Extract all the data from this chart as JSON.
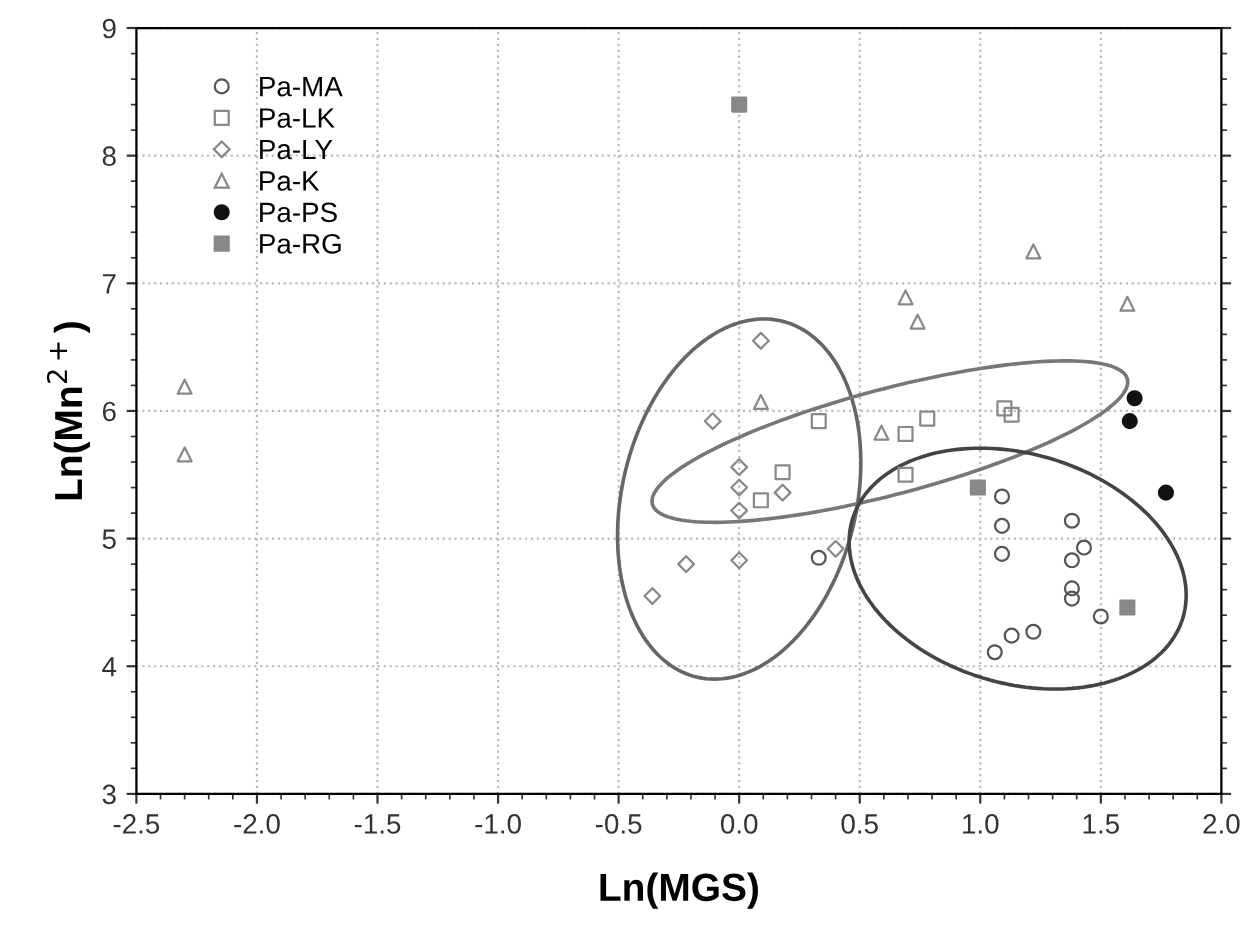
{
  "chart_data": {
    "type": "scatter",
    "xlabel": "Ln(MGS)",
    "ylabel": "Ln(Mn$^{2+}$)",
    "xlim": [
      -2.5,
      2.0
    ],
    "ylim": [
      3,
      9
    ],
    "xticks": [
      {
        "value": -2.5,
        "label": "-2.5"
      },
      {
        "value": -2,
        "label": "-2.0"
      },
      {
        "value": -1.5,
        "label": "-1.5"
      },
      {
        "value": -1,
        "label": "-1.0"
      },
      {
        "value": -0.5,
        "label": "-0.5"
      },
      {
        "value": 0,
        "label": "0.0"
      },
      {
        "value": 0.5,
        "label": "0.5"
      },
      {
        "value": 1,
        "label": "1.0"
      },
      {
        "value": 1.5,
        "label": "1.5"
      },
      {
        "value": 2,
        "label": "2.0"
      }
    ],
    "yticks": [
      3,
      4,
      5,
      6,
      7,
      8,
      9
    ],
    "grid": true,
    "legend": "top left",
    "series": [
      {
        "name": "Pa-MA",
        "marker": "circle",
        "color": "#555555",
        "x": [
          0.33,
          1.09,
          1.09,
          1.09,
          1.38,
          1.43,
          1.38,
          1.38,
          1.38,
          1.5,
          1.06,
          1.13,
          1.22
        ],
        "values": [
          4.85,
          5.33,
          5.1,
          4.88,
          5.14,
          4.93,
          4.83,
          4.61,
          4.53,
          4.39,
          4.11,
          4.24,
          4.27
        ]
      },
      {
        "name": "Pa-LK",
        "marker": "square",
        "color": "#888888",
        "x": [
          0.33,
          0.18,
          0.09,
          0.69,
          0.78,
          0.69,
          1.1,
          1.13
        ],
        "values": [
          5.92,
          5.52,
          5.3,
          5.82,
          5.94,
          5.5,
          6.02,
          5.97
        ]
      },
      {
        "name": "Pa-LY",
        "marker": "diamond",
        "color": "#888888",
        "x": [
          0.09,
          -0.11,
          0.0,
          0.0,
          0.0,
          0.18,
          -0.22,
          0.0,
          -0.36,
          0.4
        ],
        "values": [
          6.55,
          5.92,
          5.56,
          5.4,
          5.22,
          5.36,
          4.8,
          4.83,
          4.55,
          4.92
        ]
      },
      {
        "name": "Pa-K",
        "marker": "triangle",
        "color": "#888888",
        "x": [
          0.09,
          0.59,
          0.69,
          0.74,
          1.22,
          1.61,
          -2.3,
          -2.3
        ],
        "values": [
          6.07,
          5.83,
          6.89,
          6.7,
          7.25,
          6.84,
          6.19,
          5.66
        ]
      },
      {
        "name": "Pa-PS",
        "marker": "circle",
        "color": "#111111",
        "x": [
          1.64,
          1.62,
          1.77
        ],
        "values": [
          6.1,
          5.92,
          5.36
        ]
      },
      {
        "name": "Pa-RG",
        "marker": "square",
        "color": "#888888",
        "x": [
          0.99,
          1.61,
          0.0
        ],
        "values": [
          5.4,
          4.46,
          8.4
        ]
      }
    ]
  }
}
